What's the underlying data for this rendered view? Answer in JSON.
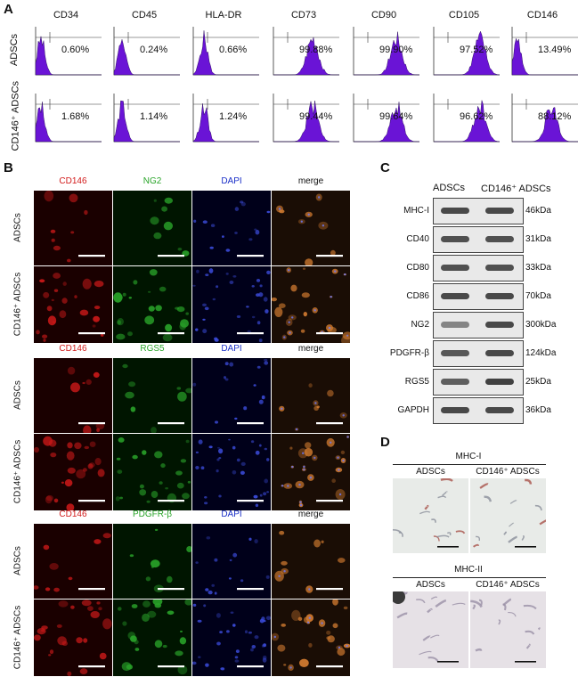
{
  "panel_a": {
    "letter": "A",
    "markers": [
      "CD34",
      "CD45",
      "HLA-DR",
      "CD73",
      "CD90",
      "CD105",
      "CD146"
    ],
    "rows": [
      {
        "label": "ADSCs",
        "values": [
          "0.60%",
          "0.24%",
          "0.66%",
          "99.88%",
          "99.90%",
          "97.52%",
          "13.49%"
        ]
      },
      {
        "label": "CD146⁺ ADSCs",
        "values": [
          "1.68%",
          "1.14%",
          "1.24%",
          "99.44%",
          "99.64%",
          "96.62%",
          "88.12%"
        ]
      }
    ],
    "histogram_color": "#6a14d6"
  },
  "panel_b": {
    "letter": "B",
    "groups": [
      {
        "headers": [
          "CD146",
          "NG2",
          "DAPI",
          "merge"
        ]
      },
      {
        "headers": [
          "CD146",
          "RGS5",
          "DAPI",
          "merge"
        ]
      },
      {
        "headers": [
          "CD146",
          "PDGFR-β",
          "DAPI",
          "merge"
        ]
      }
    ],
    "row_labels": [
      "ADSCs",
      "CD146⁺ ADSCs"
    ],
    "header_colors": [
      "#d21a1a",
      "#2aa52a",
      "#1a2fc8",
      "#111111"
    ]
  },
  "panel_c": {
    "letter": "C",
    "columns": [
      "ADSCs",
      "CD146⁺ ADSCs"
    ],
    "proteins": [
      {
        "name": "MHC-I",
        "kda": "46kDa",
        "levels": [
          0.85,
          0.85
        ]
      },
      {
        "name": "CD40",
        "kda": "31kDa",
        "levels": [
          0.8,
          0.8
        ]
      },
      {
        "name": "CD80",
        "kda": "33kDa",
        "levels": [
          0.8,
          0.8
        ]
      },
      {
        "name": "CD86",
        "kda": "70kDa",
        "levels": [
          0.85,
          0.85
        ]
      },
      {
        "name": "NG2",
        "kda": "300kDa",
        "levels": [
          0.45,
          0.85
        ]
      },
      {
        "name": "PDGFR-β",
        "kda": "124kDa",
        "levels": [
          0.75,
          0.85
        ]
      },
      {
        "name": "RGS5",
        "kda": "25kDa",
        "levels": [
          0.7,
          0.9
        ]
      },
      {
        "name": "GAPDH",
        "kda": "36kDa",
        "levels": [
          0.85,
          0.85
        ]
      }
    ]
  },
  "panel_d": {
    "letter": "D",
    "blocks": [
      {
        "title": "MHC-I",
        "columns": [
          "ADSCs",
          "CD146⁺ ADSCs"
        ]
      },
      {
        "title": "MHC-II",
        "columns": [
          "ADSCs",
          "CD146⁺ ADSCs"
        ]
      }
    ]
  }
}
